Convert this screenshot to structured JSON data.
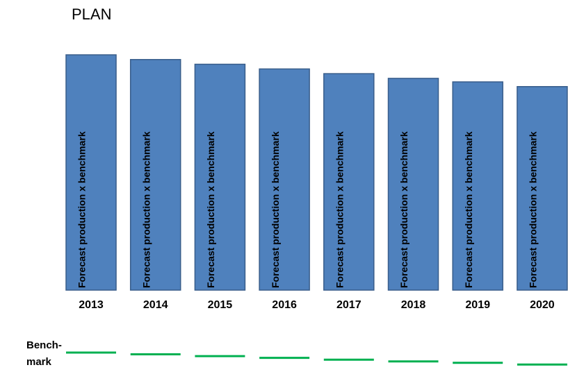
{
  "chart_data": {
    "type": "bar",
    "title": "PLAN",
    "categories": [
      "2013",
      "2014",
      "2015",
      "2016",
      "2017",
      "2018",
      "2019",
      "2020"
    ],
    "values": [
      100,
      98,
      96,
      94,
      92,
      90,
      88.5,
      86.5
    ],
    "bar_label": "Forecast production x benchmark",
    "color": "#4f81bd",
    "ylim": [
      0,
      100
    ],
    "benchmark": {
      "label": [
        "Bench-",
        "mark"
      ],
      "color": "#00b050",
      "values": [
        100,
        98,
        96,
        94,
        92,
        90,
        88.5,
        86.5
      ],
      "ylim": [
        0,
        100
      ]
    }
  }
}
